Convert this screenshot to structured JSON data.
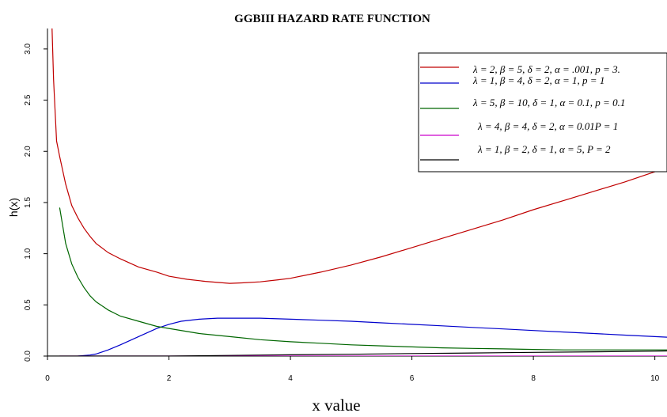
{
  "chart_data": {
    "type": "line",
    "title": "GGBIII HAZARD RATE FUNCTION",
    "xlabel": "x value",
    "ylabel": "h(x)",
    "xlim": [
      0,
      10.2
    ],
    "ylim": [
      0,
      3.2
    ],
    "x_ticks": [
      "0",
      "2",
      "4",
      "6",
      "8",
      "10"
    ],
    "y_ticks": [
      "0.0",
      "0.5",
      "1.0",
      "1.5",
      "2.0",
      "2.5",
      "3.0"
    ],
    "grid": false,
    "legend_position": "top-right",
    "series": [
      {
        "name": "λ = 2, β = 5, δ = 2, α = .001, p = 3.",
        "color": "#c00000",
        "x": [
          0.07,
          0.1,
          0.15,
          0.2,
          0.3,
          0.4,
          0.5,
          0.6,
          0.7,
          0.8,
          1.0,
          1.2,
          1.5,
          1.8,
          2.0,
          2.3,
          2.6,
          2.8,
          3.0,
          3.2,
          3.5,
          3.8,
          4.0,
          4.5,
          5.0,
          5.5,
          6.0,
          6.5,
          7.0,
          7.5,
          8.0,
          8.5,
          9.0,
          9.5,
          10.0,
          10.2
        ],
        "y": [
          3.3,
          2.7,
          2.1,
          1.95,
          1.68,
          1.47,
          1.35,
          1.25,
          1.17,
          1.1,
          1.01,
          0.95,
          0.87,
          0.82,
          0.78,
          0.75,
          0.73,
          0.72,
          0.71,
          0.715,
          0.725,
          0.745,
          0.76,
          0.82,
          0.89,
          0.97,
          1.06,
          1.15,
          1.24,
          1.33,
          1.43,
          1.52,
          1.61,
          1.7,
          1.8,
          1.88
        ]
      },
      {
        "name": "λ = 1, β = 4, δ = 2, α = 1, p = 1",
        "color": "#0000cc",
        "x": [
          0.5,
          0.7,
          0.8,
          0.9,
          1.0,
          1.2,
          1.5,
          1.8,
          2.0,
          2.2,
          2.5,
          2.8,
          3.0,
          3.5,
          4.0,
          4.5,
          5.0,
          5.5,
          6.0,
          6.5,
          7.0,
          7.5,
          8.0,
          8.5,
          9.0,
          9.5,
          10.0,
          10.2
        ],
        "y": [
          0.0,
          0.01,
          0.02,
          0.04,
          0.06,
          0.11,
          0.19,
          0.27,
          0.31,
          0.34,
          0.36,
          0.37,
          0.37,
          0.37,
          0.36,
          0.35,
          0.34,
          0.325,
          0.31,
          0.295,
          0.28,
          0.265,
          0.25,
          0.235,
          0.22,
          0.205,
          0.19,
          0.185
        ]
      },
      {
        "name": "λ = 5, β = 10, δ = 1, α = 0.1, p = 0.1",
        "color": "#006600",
        "x": [
          0.2,
          0.3,
          0.4,
          0.5,
          0.6,
          0.7,
          0.8,
          1.0,
          1.2,
          1.5,
          1.8,
          2.0,
          2.5,
          3.0,
          3.5,
          4.0,
          4.5,
          5.0,
          5.5,
          6.0,
          6.5,
          7.0,
          7.5,
          8.0,
          8.5,
          9.0,
          9.5,
          10.0,
          10.2
        ],
        "y": [
          1.45,
          1.1,
          0.9,
          0.77,
          0.67,
          0.59,
          0.53,
          0.45,
          0.39,
          0.34,
          0.29,
          0.27,
          0.22,
          0.19,
          0.16,
          0.14,
          0.125,
          0.11,
          0.1,
          0.09,
          0.08,
          0.075,
          0.07,
          0.065,
          0.06,
          0.06,
          0.06,
          0.06,
          0.06
        ]
      },
      {
        "name": "λ = 4, β = 4, δ = 2, α = 0.01P = 1",
        "color": "#cc00cc",
        "x": [
          0.2,
          1.0,
          2.0,
          3.0,
          4.0,
          5.0,
          6.0,
          7.0,
          8.0,
          9.0,
          10.0,
          10.2
        ],
        "y": [
          0.0,
          0.0,
          0.0,
          0.0,
          0.0,
          0.0,
          0.0,
          0.0,
          0.0,
          0.0,
          0.0,
          0.0
        ]
      },
      {
        "name": "λ = 1, β = 2, δ = 1, α = 5, P = 2",
        "color": "#000000",
        "x": [
          0.0,
          1.0,
          2.0,
          2.5,
          3.0,
          4.0,
          5.0,
          6.0,
          7.0,
          8.0,
          9.0,
          10.0,
          10.2
        ],
        "y": [
          0.0,
          0.0,
          0.0,
          0.003,
          0.006,
          0.012,
          0.018,
          0.025,
          0.03,
          0.036,
          0.042,
          0.048,
          0.05
        ]
      }
    ]
  }
}
